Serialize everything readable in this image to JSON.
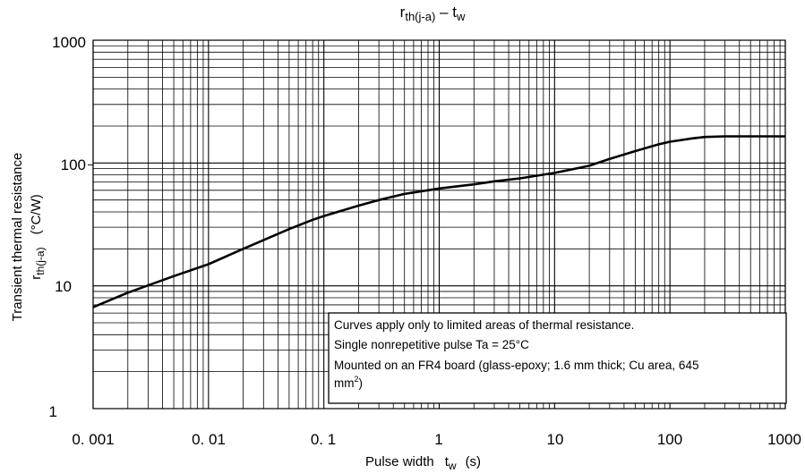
{
  "chart_data": {
    "type": "line",
    "title": {
      "main": "r",
      "main_sub": "th(j-a)",
      "dash": " – ",
      "var": "t",
      "var_sub": "w"
    },
    "x_axis": {
      "scale": "log",
      "range": [
        0.001,
        1000
      ],
      "tick_labels": [
        "0. 001",
        "0. 01",
        "0. 1",
        "1",
        "10",
        "100",
        "1000"
      ],
      "label_text": "Pulse width",
      "label_symbol": "t",
      "label_symbol_sub": "w",
      "label_unit": "(s)"
    },
    "y_axis": {
      "scale": "log",
      "range": [
        1,
        1000
      ],
      "tick_labels": [
        "1",
        "10",
        "100",
        "1000"
      ],
      "label_line1": "Transient thermal resistance",
      "label_symbol": "r",
      "label_symbol_sub": "th(j-a)",
      "label_unit": "(°C/W)"
    },
    "grid": true,
    "series": [
      {
        "x": [
          0.001,
          0.002,
          0.005,
          0.01,
          0.02,
          0.05,
          0.08,
          0.1,
          0.2,
          0.3,
          0.5,
          1,
          2,
          3,
          5,
          10,
          20,
          30,
          50,
          80,
          100,
          150,
          200,
          300,
          500,
          1000
        ],
        "y": [
          6.7,
          8.8,
          12.0,
          15.0,
          20.0,
          29.0,
          34.5,
          37.0,
          45.0,
          50.0,
          56.0,
          62.0,
          67.0,
          71.0,
          75.0,
          83.0,
          95.0,
          108.0,
          125.0,
          142.0,
          149.0,
          158.0,
          163.0,
          165.0,
          165.0,
          165.0
        ]
      }
    ],
    "annotation": {
      "line1": "Curves apply only to limited areas of thermal resistance.",
      "line2": "Single nonrepetitive pulse    Ta = 25°C",
      "line3": "Mounted on an FR4 board (glass-epoxy; 1.6 mm thick; Cu area, 645",
      "line4_text": "mm",
      "line4_sup": "2",
      "line4_tail": ")"
    }
  }
}
